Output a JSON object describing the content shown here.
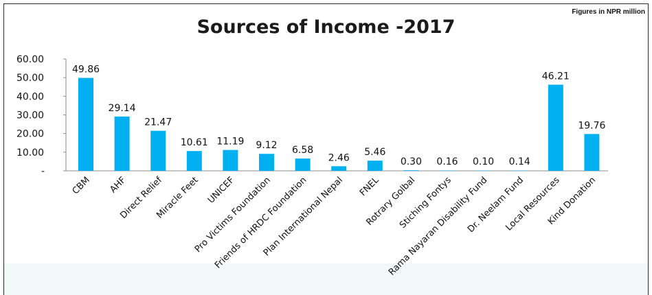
{
  "chart_data": {
    "type": "bar",
    "title": "Sources of Income -2017",
    "note": "Figures in NPR million",
    "categories": [
      "CBM",
      "AHF",
      "Direct Relief",
      "Miracle Feet",
      "UNICEF",
      "Pro Victims Foundation",
      "Friends of HRDC Foundation",
      "Plan International Nepal",
      "FNEL",
      "Rotrary Golbal",
      "Stiching Fontys",
      "Rama Nayaran Disability Fund",
      "Dr. Neelam Fund",
      "Local Resources",
      "Kind Donation"
    ],
    "values": [
      49.86,
      29.14,
      21.47,
      10.61,
      11.19,
      9.12,
      6.58,
      2.46,
      5.46,
      0.3,
      0.16,
      0.1,
      0.14,
      46.21,
      19.76
    ],
    "value_labels": [
      "49.86",
      "29.14",
      "21.47",
      "10.61",
      "11.19",
      "9.12",
      "6.58",
      "2.46",
      "5.46",
      "0.30",
      "0.16",
      "0.10",
      "0.14",
      "46.21",
      "19.76"
    ],
    "yticks": [
      0,
      10,
      20,
      30,
      40,
      50,
      60
    ],
    "ytick_labels": [
      "-",
      "10.00",
      "20.00",
      "30.00",
      "40.00",
      "50.00",
      "60.00"
    ],
    "ylim": [
      0,
      60
    ],
    "xlabel": "",
    "ylabel": "",
    "grid": false,
    "legend": "none",
    "bar_color": "#00b0f0"
  }
}
